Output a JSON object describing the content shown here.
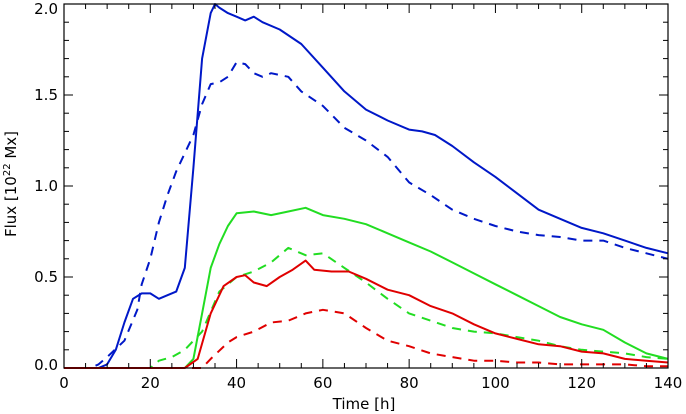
{
  "chart_data": {
    "type": "line",
    "title": "",
    "xlabel": "Time [h]",
    "ylabel_parts": {
      "prefix": "Flux [10",
      "exponent": "22",
      "suffix": " Mx]"
    },
    "xlim": [
      0,
      140
    ],
    "ylim": [
      0,
      2.0
    ],
    "xticks": [
      0,
      20,
      40,
      60,
      80,
      100,
      120,
      140
    ],
    "xtick_labels": [
      "0",
      "20",
      "40",
      "60",
      "80",
      "100",
      "120",
      "140"
    ],
    "yticks": [
      0.0,
      0.5,
      1.0,
      1.5,
      2.0
    ],
    "ytick_labels": [
      "0.0",
      "0.5",
      "1.0",
      "1.5",
      "2.0"
    ],
    "grid": false,
    "series": [
      {
        "name": "blue-solid",
        "color": "#0018c8",
        "style": "solid",
        "points": [
          [
            0,
            0
          ],
          [
            8,
            0
          ],
          [
            10,
            0.02
          ],
          [
            12,
            0.1
          ],
          [
            14,
            0.25
          ],
          [
            16,
            0.38
          ],
          [
            18,
            0.41
          ],
          [
            20,
            0.41
          ],
          [
            22,
            0.38
          ],
          [
            24,
            0.4
          ],
          [
            26,
            0.42
          ],
          [
            28,
            0.55
          ],
          [
            30,
            1.1
          ],
          [
            32,
            1.7
          ],
          [
            34,
            1.95
          ],
          [
            35,
            2.0
          ],
          [
            36,
            1.98
          ],
          [
            38,
            1.95
          ],
          [
            40,
            1.93
          ],
          [
            42,
            1.91
          ],
          [
            44,
            1.93
          ],
          [
            46,
            1.9
          ],
          [
            50,
            1.86
          ],
          [
            55,
            1.78
          ],
          [
            60,
            1.65
          ],
          [
            65,
            1.52
          ],
          [
            70,
            1.42
          ],
          [
            75,
            1.36
          ],
          [
            80,
            1.31
          ],
          [
            83,
            1.3
          ],
          [
            86,
            1.28
          ],
          [
            90,
            1.22
          ],
          [
            95,
            1.13
          ],
          [
            100,
            1.05
          ],
          [
            105,
            0.96
          ],
          [
            110,
            0.87
          ],
          [
            115,
            0.82
          ],
          [
            120,
            0.77
          ],
          [
            125,
            0.74
          ],
          [
            130,
            0.7
          ],
          [
            135,
            0.66
          ],
          [
            140,
            0.63
          ]
        ]
      },
      {
        "name": "blue-dashed",
        "color": "#0018c8",
        "style": "dashed",
        "points": [
          [
            0,
            0
          ],
          [
            6,
            0
          ],
          [
            8,
            0.02
          ],
          [
            10,
            0.06
          ],
          [
            14,
            0.15
          ],
          [
            17,
            0.32
          ],
          [
            18,
            0.46
          ],
          [
            20,
            0.6
          ],
          [
            22,
            0.8
          ],
          [
            24,
            0.95
          ],
          [
            26,
            1.08
          ],
          [
            28,
            1.18
          ],
          [
            30,
            1.28
          ],
          [
            32,
            1.45
          ],
          [
            34,
            1.56
          ],
          [
            36,
            1.57
          ],
          [
            38,
            1.6
          ],
          [
            40,
            1.68
          ],
          [
            42,
            1.67
          ],
          [
            44,
            1.62
          ],
          [
            46,
            1.6
          ],
          [
            48,
            1.62
          ],
          [
            50,
            1.61
          ],
          [
            52,
            1.6
          ],
          [
            55,
            1.52
          ],
          [
            60,
            1.44
          ],
          [
            65,
            1.32
          ],
          [
            70,
            1.25
          ],
          [
            75,
            1.16
          ],
          [
            80,
            1.02
          ],
          [
            85,
            0.95
          ],
          [
            90,
            0.87
          ],
          [
            95,
            0.82
          ],
          [
            100,
            0.78
          ],
          [
            105,
            0.75
          ],
          [
            110,
            0.73
          ],
          [
            115,
            0.72
          ],
          [
            120,
            0.7
          ],
          [
            125,
            0.7
          ],
          [
            130,
            0.66
          ],
          [
            135,
            0.63
          ],
          [
            140,
            0.6
          ]
        ]
      },
      {
        "name": "green-solid",
        "color": "#22dd22",
        "style": "solid",
        "points": [
          [
            0,
            0
          ],
          [
            28,
            0
          ],
          [
            30,
            0.05
          ],
          [
            32,
            0.3
          ],
          [
            34,
            0.55
          ],
          [
            36,
            0.68
          ],
          [
            38,
            0.78
          ],
          [
            40,
            0.85
          ],
          [
            44,
            0.86
          ],
          [
            48,
            0.84
          ],
          [
            52,
            0.86
          ],
          [
            56,
            0.88
          ],
          [
            60,
            0.84
          ],
          [
            65,
            0.82
          ],
          [
            70,
            0.79
          ],
          [
            75,
            0.74
          ],
          [
            80,
            0.69
          ],
          [
            85,
            0.64
          ],
          [
            90,
            0.58
          ],
          [
            95,
            0.52
          ],
          [
            100,
            0.46
          ],
          [
            105,
            0.4
          ],
          [
            110,
            0.34
          ],
          [
            115,
            0.28
          ],
          [
            120,
            0.24
          ],
          [
            125,
            0.21
          ],
          [
            130,
            0.14
          ],
          [
            135,
            0.08
          ],
          [
            140,
            0.05
          ]
        ]
      },
      {
        "name": "green-dashed",
        "color": "#22dd22",
        "style": "dashed",
        "points": [
          [
            0,
            0
          ],
          [
            20,
            0
          ],
          [
            22,
            0.04
          ],
          [
            25,
            0.06
          ],
          [
            28,
            0.1
          ],
          [
            32,
            0.2
          ],
          [
            36,
            0.42
          ],
          [
            40,
            0.5
          ],
          [
            44,
            0.53
          ],
          [
            48,
            0.58
          ],
          [
            52,
            0.66
          ],
          [
            56,
            0.62
          ],
          [
            60,
            0.63
          ],
          [
            65,
            0.55
          ],
          [
            70,
            0.47
          ],
          [
            75,
            0.38
          ],
          [
            80,
            0.3
          ],
          [
            85,
            0.26
          ],
          [
            90,
            0.22
          ],
          [
            95,
            0.2
          ],
          [
            100,
            0.19
          ],
          [
            105,
            0.17
          ],
          [
            110,
            0.15
          ],
          [
            115,
            0.12
          ],
          [
            120,
            0.1
          ],
          [
            125,
            0.09
          ],
          [
            130,
            0.08
          ],
          [
            135,
            0.06
          ],
          [
            140,
            0.05
          ]
        ]
      },
      {
        "name": "red-solid",
        "color": "#e00000",
        "style": "solid",
        "points": [
          [
            0,
            0
          ],
          [
            28,
            0
          ],
          [
            31,
            0.05
          ],
          [
            34,
            0.3
          ],
          [
            37,
            0.45
          ],
          [
            40,
            0.5
          ],
          [
            42,
            0.51
          ],
          [
            44,
            0.47
          ],
          [
            47,
            0.45
          ],
          [
            50,
            0.5
          ],
          [
            53,
            0.54
          ],
          [
            56,
            0.59
          ],
          [
            58,
            0.54
          ],
          [
            62,
            0.53
          ],
          [
            66,
            0.53
          ],
          [
            70,
            0.49
          ],
          [
            75,
            0.43
          ],
          [
            80,
            0.4
          ],
          [
            85,
            0.34
          ],
          [
            90,
            0.3
          ],
          [
            95,
            0.24
          ],
          [
            100,
            0.19
          ],
          [
            105,
            0.16
          ],
          [
            110,
            0.13
          ],
          [
            115,
            0.12
          ],
          [
            120,
            0.09
          ],
          [
            125,
            0.08
          ],
          [
            130,
            0.05
          ],
          [
            135,
            0.04
          ],
          [
            140,
            0.03
          ]
        ]
      },
      {
        "name": "red-dashed",
        "color": "#e00000",
        "style": "dashed",
        "points": [
          [
            0,
            0
          ],
          [
            32,
            0
          ],
          [
            34,
            0.05
          ],
          [
            38,
            0.14
          ],
          [
            40,
            0.17
          ],
          [
            44,
            0.2
          ],
          [
            48,
            0.25
          ],
          [
            52,
            0.26
          ],
          [
            56,
            0.3
          ],
          [
            60,
            0.32
          ],
          [
            65,
            0.3
          ],
          [
            70,
            0.22
          ],
          [
            75,
            0.15
          ],
          [
            80,
            0.12
          ],
          [
            85,
            0.08
          ],
          [
            90,
            0.06
          ],
          [
            95,
            0.04
          ],
          [
            100,
            0.04
          ],
          [
            105,
            0.03
          ],
          [
            110,
            0.03
          ],
          [
            115,
            0.02
          ],
          [
            120,
            0.02
          ],
          [
            125,
            0.02
          ],
          [
            130,
            0.02
          ],
          [
            135,
            0.01
          ],
          [
            140,
            0.01
          ]
        ]
      }
    ]
  }
}
